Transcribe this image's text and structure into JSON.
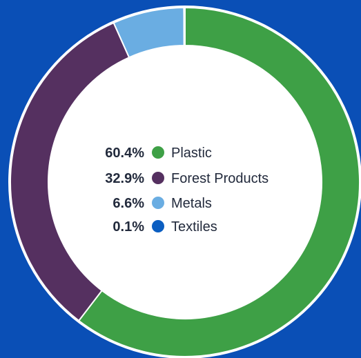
{
  "chart_data": {
    "type": "pie",
    "categories": [
      "Plastic",
      "Forest Products",
      "Metals",
      "Textiles"
    ],
    "values": [
      60.4,
      32.9,
      6.6,
      0.1
    ],
    "value_labels": [
      "60.4%",
      "32.9%",
      "6.6%",
      "0.1%"
    ],
    "colors": [
      "#3ea046",
      "#553060",
      "#6aade2",
      "#0b5ec1"
    ],
    "donut": true,
    "legend_position": "center"
  },
  "colors": {
    "background": "#0a4fb6",
    "ring_border": "#ffffff",
    "center_fill": "#ffffff",
    "text": "#222a3c"
  }
}
